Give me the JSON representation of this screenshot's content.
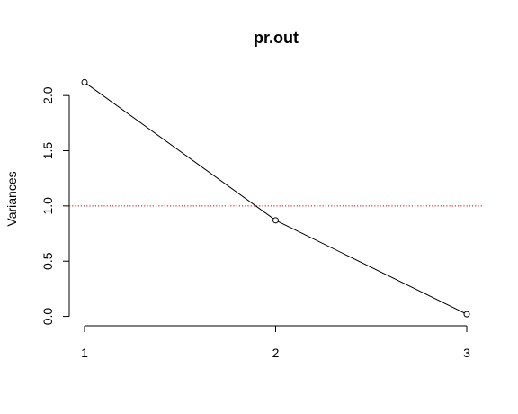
{
  "chart_data": {
    "type": "line",
    "title": "pr.out",
    "xlabel": "",
    "ylabel": "Variances",
    "x": [
      1,
      2,
      3
    ],
    "series": [
      {
        "values": [
          2.12,
          0.87,
          0.02
        ],
        "color": "#000000",
        "marker": "open-circle"
      }
    ],
    "xticks": [
      1,
      2,
      3
    ],
    "xtick_labels": [
      "1",
      "2",
      "3"
    ],
    "yticks": [
      0.0,
      0.5,
      1.0,
      1.5,
      2.0
    ],
    "ytick_labels": [
      "0.0",
      "0.5",
      "1.0",
      "1.5",
      "2.0"
    ],
    "xlim": [
      0.92,
      3.08
    ],
    "ylim": [
      -0.085,
      2.205
    ],
    "reference_line": {
      "y": 1.0,
      "color": "#cc0000",
      "style": "dotted"
    },
    "grid": false,
    "legend": "none"
  }
}
